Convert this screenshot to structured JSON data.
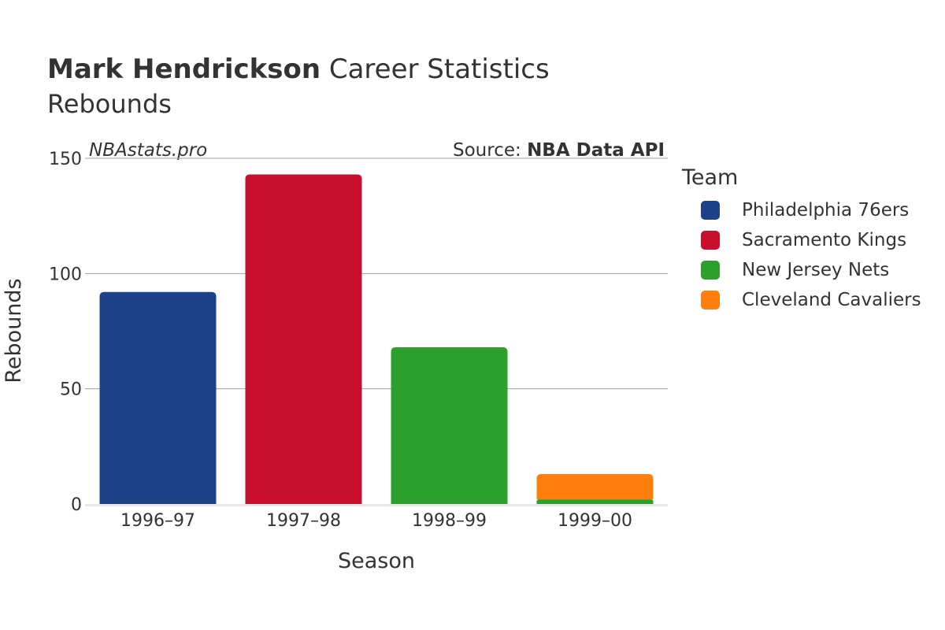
{
  "header": {
    "player_name": "Mark Hendrickson",
    "title_rest": " Career Statistics",
    "subtitle": "Rebounds",
    "brand": "NBAstats.pro",
    "source_prefix": "Source: ",
    "source_name": "NBA Data API"
  },
  "legend": {
    "title": "Team",
    "items": [
      {
        "label": "Philadelphia 76ers",
        "color": "#1d428a"
      },
      {
        "label": "Sacramento Kings",
        "color": "#c8102e"
      },
      {
        "label": "New Jersey Nets",
        "color": "#2ca02c"
      },
      {
        "label": "Cleveland Cavaliers",
        "color": "#ff7f0e"
      }
    ]
  },
  "chart_data": {
    "type": "bar",
    "stacked": true,
    "xlabel": "Season",
    "ylabel": "Rebounds",
    "categories": [
      "1996–97",
      "1997–98",
      "1998–99",
      "1999–00"
    ],
    "ylim": [
      0,
      150
    ],
    "yticks": [
      0,
      50,
      100,
      150
    ],
    "grid": true,
    "legend_position": "right",
    "series": [
      {
        "name": "Philadelphia 76ers",
        "color": "#1d428a",
        "values": [
          92,
          0,
          0,
          0
        ]
      },
      {
        "name": "Sacramento Kings",
        "color": "#c8102e",
        "values": [
          0,
          143,
          0,
          0
        ]
      },
      {
        "name": "New Jersey Nets",
        "color": "#2ca02c",
        "values": [
          0,
          0,
          68,
          2
        ]
      },
      {
        "name": "Cleveland Cavaliers",
        "color": "#ff7f0e",
        "values": [
          0,
          0,
          0,
          11
        ]
      }
    ]
  }
}
